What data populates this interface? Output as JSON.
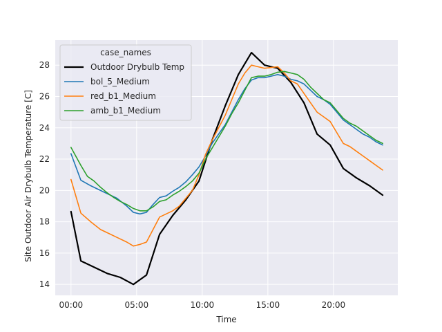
{
  "chart_data": {
    "type": "line",
    "title": "",
    "xlabel": "Time",
    "ylabel": "Site Outdoor Air Drybulb Temperature [C]",
    "xlim": [
      -1.2,
      24.9
    ],
    "ylim": [
      13.3,
      29.6
    ],
    "xticks": [
      0,
      5,
      10,
      15,
      20
    ],
    "xtick_labels": [
      "00:00",
      "05:00",
      "10:00",
      "15:00",
      "20:00"
    ],
    "yticks": [
      14,
      16,
      18,
      20,
      22,
      24,
      26,
      28
    ],
    "ytick_labels": [
      "14",
      "16",
      "18",
      "20",
      "22",
      "24",
      "26",
      "28"
    ],
    "grid": true,
    "legend": {
      "title": "case_names",
      "position": "top-left"
    },
    "series": [
      {
        "name": "Outdoor Drybulb Temp",
        "color": "#000000",
        "points": [
          [
            0,
            18.65
          ],
          [
            0.75,
            15.5
          ],
          [
            2.75,
            14.7
          ],
          [
            3.75,
            14.45
          ],
          [
            4.75,
            14.0
          ],
          [
            5.75,
            14.6
          ],
          [
            6.75,
            17.2
          ],
          [
            7.75,
            18.4
          ],
          [
            8.75,
            19.4
          ],
          [
            9.75,
            20.6
          ],
          [
            10.75,
            23.2
          ],
          [
            11.75,
            25.4
          ],
          [
            12.75,
            27.4
          ],
          [
            13.75,
            28.8
          ],
          [
            14.75,
            28.0
          ],
          [
            15.75,
            27.8
          ],
          [
            16.75,
            26.9
          ],
          [
            17.75,
            25.6
          ],
          [
            18.75,
            23.6
          ],
          [
            19.75,
            22.9
          ],
          [
            20.75,
            21.4
          ],
          [
            21.75,
            20.8
          ],
          [
            22.75,
            20.3
          ],
          [
            23.75,
            19.7
          ]
        ]
      },
      {
        "name": "bol_5_Medium",
        "color": "#1f77b4",
        "points": [
          [
            0,
            22.35
          ],
          [
            0.75,
            20.65
          ],
          [
            1.5,
            20.3
          ],
          [
            2.5,
            19.9
          ],
          [
            3.5,
            19.5
          ],
          [
            4.25,
            19.0
          ],
          [
            4.75,
            18.6
          ],
          [
            5.25,
            18.5
          ],
          [
            5.75,
            18.6
          ],
          [
            6.25,
            19.1
          ],
          [
            6.75,
            19.55
          ],
          [
            7.25,
            19.65
          ],
          [
            7.75,
            19.95
          ],
          [
            8.25,
            20.2
          ],
          [
            8.75,
            20.55
          ],
          [
            9.25,
            21.0
          ],
          [
            9.75,
            21.5
          ],
          [
            10.25,
            22.2
          ],
          [
            10.75,
            23.0
          ],
          [
            11.25,
            23.6
          ],
          [
            11.75,
            24.2
          ],
          [
            12.25,
            25.0
          ],
          [
            12.75,
            25.8
          ],
          [
            13.25,
            26.5
          ],
          [
            13.75,
            27.05
          ],
          [
            14.25,
            27.2
          ],
          [
            14.75,
            27.2
          ],
          [
            15.25,
            27.3
          ],
          [
            15.75,
            27.4
          ],
          [
            16.25,
            27.3
          ],
          [
            16.75,
            27.1
          ],
          [
            17.25,
            27.0
          ],
          [
            17.75,
            26.8
          ],
          [
            18.25,
            26.4
          ],
          [
            18.75,
            26.0
          ],
          [
            19.25,
            25.8
          ],
          [
            19.75,
            25.5
          ],
          [
            20.25,
            25.0
          ],
          [
            20.75,
            24.5
          ],
          [
            21.25,
            24.2
          ],
          [
            21.75,
            23.9
          ],
          [
            22.25,
            23.6
          ],
          [
            22.75,
            23.4
          ],
          [
            23.25,
            23.1
          ],
          [
            23.75,
            22.9
          ]
        ]
      },
      {
        "name": "red_b1_Medium",
        "color": "#ff7f0e",
        "points": [
          [
            0,
            20.7
          ],
          [
            0.75,
            18.55
          ],
          [
            1.5,
            18.0
          ],
          [
            2.25,
            17.5
          ],
          [
            2.75,
            17.3
          ],
          [
            3.5,
            17.0
          ],
          [
            4.25,
            16.7
          ],
          [
            4.75,
            16.45
          ],
          [
            5.25,
            16.55
          ],
          [
            5.75,
            16.7
          ],
          [
            6.25,
            17.5
          ],
          [
            6.75,
            18.3
          ],
          [
            7.25,
            18.5
          ],
          [
            7.75,
            18.7
          ],
          [
            8.25,
            19.0
          ],
          [
            8.75,
            19.5
          ],
          [
            9.25,
            20.0
          ],
          [
            9.75,
            21.0
          ],
          [
            10.25,
            22.3
          ],
          [
            10.75,
            23.2
          ],
          [
            11.25,
            24.0
          ],
          [
            11.75,
            24.8
          ],
          [
            12.25,
            25.8
          ],
          [
            12.75,
            26.8
          ],
          [
            13.25,
            27.5
          ],
          [
            13.75,
            28.0
          ],
          [
            14.25,
            27.9
          ],
          [
            14.75,
            27.8
          ],
          [
            15.25,
            27.85
          ],
          [
            15.75,
            27.9
          ],
          [
            16.25,
            27.5
          ],
          [
            16.75,
            27.0
          ],
          [
            17.25,
            26.8
          ],
          [
            17.75,
            26.2
          ],
          [
            18.25,
            25.6
          ],
          [
            18.75,
            25.0
          ],
          [
            19.25,
            24.7
          ],
          [
            19.75,
            24.4
          ],
          [
            20.25,
            23.7
          ],
          [
            20.75,
            23.0
          ],
          [
            21.25,
            22.8
          ],
          [
            21.75,
            22.5
          ],
          [
            22.25,
            22.2
          ],
          [
            22.75,
            21.9
          ],
          [
            23.25,
            21.6
          ],
          [
            23.75,
            21.3
          ]
        ]
      },
      {
        "name": "amb_b1_Medium",
        "color": "#2ca02c",
        "points": [
          [
            0,
            22.75
          ],
          [
            0.75,
            21.6
          ],
          [
            1.25,
            20.9
          ],
          [
            1.75,
            20.6
          ],
          [
            2.25,
            20.2
          ],
          [
            2.75,
            19.85
          ],
          [
            3.25,
            19.55
          ],
          [
            3.75,
            19.3
          ],
          [
            4.25,
            19.1
          ],
          [
            4.75,
            18.85
          ],
          [
            5.25,
            18.7
          ],
          [
            5.75,
            18.7
          ],
          [
            6.25,
            18.95
          ],
          [
            6.75,
            19.3
          ],
          [
            7.25,
            19.4
          ],
          [
            7.75,
            19.7
          ],
          [
            8.25,
            19.95
          ],
          [
            8.75,
            20.25
          ],
          [
            9.25,
            20.6
          ],
          [
            9.75,
            21.1
          ],
          [
            10.25,
            22.0
          ],
          [
            10.75,
            22.7
          ],
          [
            11.25,
            23.4
          ],
          [
            11.75,
            24.1
          ],
          [
            12.25,
            24.9
          ],
          [
            12.75,
            25.6
          ],
          [
            13.25,
            26.4
          ],
          [
            13.75,
            27.2
          ],
          [
            14.25,
            27.3
          ],
          [
            14.75,
            27.3
          ],
          [
            15.25,
            27.4
          ],
          [
            15.75,
            27.55
          ],
          [
            16.25,
            27.6
          ],
          [
            16.75,
            27.5
          ],
          [
            17.25,
            27.4
          ],
          [
            17.75,
            27.1
          ],
          [
            18.25,
            26.6
          ],
          [
            18.75,
            26.2
          ],
          [
            19.25,
            25.8
          ],
          [
            19.75,
            25.6
          ],
          [
            20.25,
            25.1
          ],
          [
            20.75,
            24.6
          ],
          [
            21.25,
            24.3
          ],
          [
            21.75,
            24.1
          ],
          [
            22.25,
            23.8
          ],
          [
            22.75,
            23.5
          ],
          [
            23.25,
            23.2
          ],
          [
            23.75,
            23.0
          ]
        ]
      }
    ]
  }
}
